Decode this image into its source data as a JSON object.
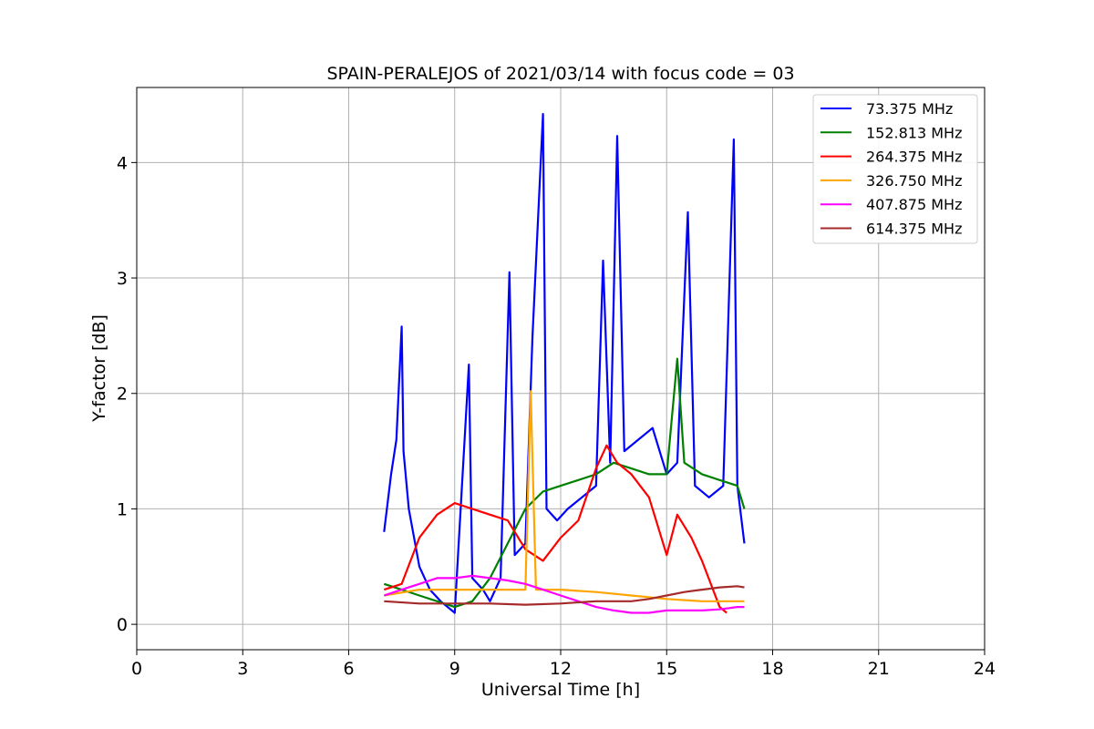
{
  "chart_data": {
    "type": "line",
    "title": "SPAIN-PERALEJOS of 2021/03/14 with focus code = 03",
    "xlabel": "Universal Time [h]",
    "ylabel": "Y-factor [dB]",
    "xlim": [
      0,
      24
    ],
    "ylim": [
      -0.22,
      4.65
    ],
    "xticks": [
      0,
      3,
      6,
      9,
      12,
      15,
      18,
      21,
      24
    ],
    "yticks": [
      0,
      1,
      2,
      3,
      4
    ],
    "grid": true,
    "legend_position": "top-right",
    "series": [
      {
        "name": " 73.375 MHz",
        "color": "#0000ff",
        "x": [
          7.0,
          7.2,
          7.35,
          7.5,
          7.55,
          7.7,
          8.0,
          8.3,
          8.6,
          9.0,
          9.4,
          9.5,
          9.8,
          10.0,
          10.3,
          10.55,
          10.7,
          11.0,
          11.2,
          11.5,
          11.6,
          11.9,
          12.2,
          12.6,
          13.0,
          13.2,
          13.4,
          13.6,
          13.8,
          14.2,
          14.6,
          15.0,
          15.3,
          15.6,
          15.8,
          16.2,
          16.6,
          16.9,
          17.0,
          17.2
        ],
        "y": [
          0.8,
          1.3,
          1.6,
          2.58,
          1.5,
          1.0,
          0.5,
          0.3,
          0.2,
          0.1,
          2.25,
          0.4,
          0.3,
          0.2,
          0.4,
          3.05,
          0.6,
          0.7,
          2.48,
          4.42,
          1.0,
          0.9,
          1.0,
          1.1,
          1.2,
          3.15,
          1.4,
          4.23,
          1.5,
          1.6,
          1.7,
          1.3,
          1.4,
          3.57,
          1.2,
          1.1,
          1.2,
          4.2,
          1.2,
          0.7
        ]
      },
      {
        "name": "152.813 MHz",
        "color": "#008000",
        "x": [
          7.0,
          7.5,
          8.0,
          8.5,
          9.0,
          9.5,
          10.0,
          10.5,
          11.0,
          11.5,
          12.0,
          12.5,
          13.0,
          13.5,
          14.0,
          14.5,
          15.0,
          15.3,
          15.5,
          16.0,
          16.5,
          17.0,
          17.2
        ],
        "y": [
          0.35,
          0.3,
          0.25,
          0.2,
          0.15,
          0.2,
          0.4,
          0.7,
          1.0,
          1.15,
          1.2,
          1.25,
          1.3,
          1.4,
          1.35,
          1.3,
          1.3,
          2.3,
          1.4,
          1.3,
          1.25,
          1.2,
          1.0
        ]
      },
      {
        "name": "264.375 MHz",
        "color": "#ff0000",
        "x": [
          7.0,
          7.5,
          8.0,
          8.5,
          9.0,
          9.5,
          10.0,
          10.5,
          11.0,
          11.5,
          12.0,
          12.5,
          13.0,
          13.3,
          13.6,
          14.0,
          14.5,
          15.0,
          15.3,
          15.7,
          16.0,
          16.5,
          16.7
        ],
        "y": [
          0.3,
          0.35,
          0.75,
          0.95,
          1.05,
          1.0,
          0.95,
          0.9,
          0.65,
          0.55,
          0.75,
          0.9,
          1.35,
          1.55,
          1.4,
          1.3,
          1.1,
          0.6,
          0.95,
          0.75,
          0.55,
          0.15,
          0.1
        ]
      },
      {
        "name": "326.750 MHz",
        "color": "#ffa500",
        "x": [
          7.0,
          8.0,
          9.0,
          10.0,
          11.0,
          11.15,
          11.3,
          12.0,
          13.0,
          14.0,
          15.0,
          16.0,
          17.0,
          17.2
        ],
        "y": [
          0.25,
          0.3,
          0.3,
          0.3,
          0.3,
          2.02,
          0.3,
          0.3,
          0.28,
          0.25,
          0.22,
          0.2,
          0.2,
          0.2
        ]
      },
      {
        "name": "407.875 MHz",
        "color": "#ff00ff",
        "x": [
          7.0,
          7.5,
          8.0,
          8.5,
          9.0,
          9.5,
          10.0,
          10.5,
          11.0,
          11.5,
          12.0,
          12.5,
          13.0,
          13.5,
          14.0,
          14.5,
          15.0,
          15.5,
          16.0,
          16.5,
          17.0,
          17.2
        ],
        "y": [
          0.25,
          0.3,
          0.35,
          0.4,
          0.4,
          0.42,
          0.4,
          0.38,
          0.35,
          0.3,
          0.25,
          0.2,
          0.15,
          0.12,
          0.1,
          0.1,
          0.12,
          0.12,
          0.12,
          0.13,
          0.15,
          0.15
        ]
      },
      {
        "name": "614.375 MHz",
        "color": "#a52a2a",
        "x": [
          7.0,
          8.0,
          9.0,
          10.0,
          11.0,
          12.0,
          13.0,
          14.0,
          14.5,
          15.0,
          15.5,
          16.0,
          16.5,
          17.0,
          17.2
        ],
        "y": [
          0.2,
          0.18,
          0.18,
          0.18,
          0.17,
          0.18,
          0.2,
          0.2,
          0.22,
          0.25,
          0.28,
          0.3,
          0.32,
          0.33,
          0.32
        ]
      }
    ]
  }
}
